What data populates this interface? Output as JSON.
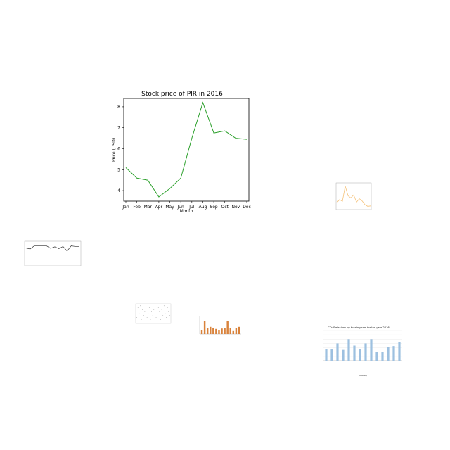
{
  "chart_data": [
    {
      "type": "line",
      "title": "Stock price of PIR in 2016",
      "xlabel": "Month",
      "ylabel": "Price (USD)",
      "categories": [
        "Jan",
        "Feb",
        "Mar",
        "Apr",
        "May",
        "Jun",
        "Jul",
        "Aug",
        "Sep",
        "Oct",
        "Nov",
        "Dec"
      ],
      "series": [
        {
          "values": [
            5.1,
            4.6,
            4.5,
            3.7,
            4.1,
            4.6,
            6.5,
            8.2,
            6.75,
            6.85,
            6.5,
            6.45
          ]
        }
      ],
      "ylim": [
        3.5,
        8.4
      ],
      "yticks": [
        4,
        5,
        6,
        7,
        8
      ],
      "color": "#2ca02c",
      "grid": false
    },
    {
      "type": "line",
      "title": "",
      "xlabel": "",
      "ylabel": "",
      "categories": [
        "",
        "",
        "",
        "",
        "",
        "",
        "",
        "",
        "",
        "",
        "",
        "",
        ""
      ],
      "series": [
        {
          "values": [
            1.5,
            2.2,
            1.8,
            5.4,
            3.1,
            2.6,
            3.3,
            1.6,
            2.4,
            1.9,
            1.0,
            0.6,
            0.7
          ]
        }
      ],
      "ylim": [
        0,
        6
      ],
      "color": "#f5c27a",
      "grid": false
    },
    {
      "type": "line",
      "title": "",
      "xlabel": "",
      "ylabel": "",
      "categories": [
        "",
        "",
        "",
        "",
        "",
        "",
        "",
        "",
        "",
        "",
        "",
        "",
        "",
        ""
      ],
      "series": [
        {
          "values": [
            58,
            55,
            65,
            65,
            65,
            65,
            57,
            62,
            56,
            63,
            48,
            65,
            63,
            63
          ]
        }
      ],
      "ylim": [
        0,
        80
      ],
      "color": "#333333",
      "grid": false
    },
    {
      "type": "scatter",
      "title": "",
      "xlabel": "",
      "ylabel": "",
      "series": [
        {
          "points": [
            [
              1,
              3
            ],
            [
              2,
              8
            ],
            [
              3,
              5
            ],
            [
              4,
              9
            ],
            [
              5,
              2
            ],
            [
              6,
              7
            ],
            [
              7,
              4
            ],
            [
              8,
              6
            ],
            [
              9,
              9
            ],
            [
              10,
              3
            ],
            [
              11,
              5
            ],
            [
              12,
              8
            ],
            [
              13,
              2
            ],
            [
              14,
              6
            ],
            [
              15,
              4
            ],
            [
              16,
              7
            ],
            [
              17,
              9
            ],
            [
              18,
              3
            ],
            [
              19,
              5
            ],
            [
              20,
              8
            ],
            [
              21,
              6
            ],
            [
              22,
              2
            ],
            [
              23,
              7
            ],
            [
              24,
              4
            ],
            [
              25,
              9
            ],
            [
              26,
              5
            ],
            [
              27,
              3
            ],
            [
              28,
              8
            ],
            [
              29,
              6
            ],
            [
              30,
              4
            ]
          ]
        }
      ],
      "ylim": [
        0,
        10
      ],
      "color": "#888888",
      "grid": true
    },
    {
      "type": "bar",
      "title": "",
      "xlabel": "",
      "ylabel": "",
      "categories": [
        "",
        "",
        "",
        "",
        "",
        "",
        "",
        "",
        "",
        "",
        "",
        "",
        "",
        ""
      ],
      "values": [
        18,
        62,
        30,
        34,
        28,
        24,
        20,
        26,
        30,
        60,
        28,
        14,
        30,
        34
      ],
      "ylim": [
        0,
        80
      ],
      "color": "#d9823b",
      "grid": false
    },
    {
      "type": "bar",
      "title": "CO₂ Emissions by burning coal for the year 2016",
      "xlabel": "Country",
      "ylabel": "",
      "categories": [
        "",
        "",
        "",
        "",
        "",
        "",
        "",
        "",
        "",
        "",
        "",
        "",
        "",
        ""
      ],
      "values": [
        52000,
        52000,
        80000,
        50000,
        100000,
        70000,
        55000,
        80000,
        100000,
        40000,
        40000,
        65000,
        68000,
        85000
      ],
      "ylim": [
        0,
        140000
      ],
      "color": "#9dc0e0",
      "grid": true
    }
  ]
}
